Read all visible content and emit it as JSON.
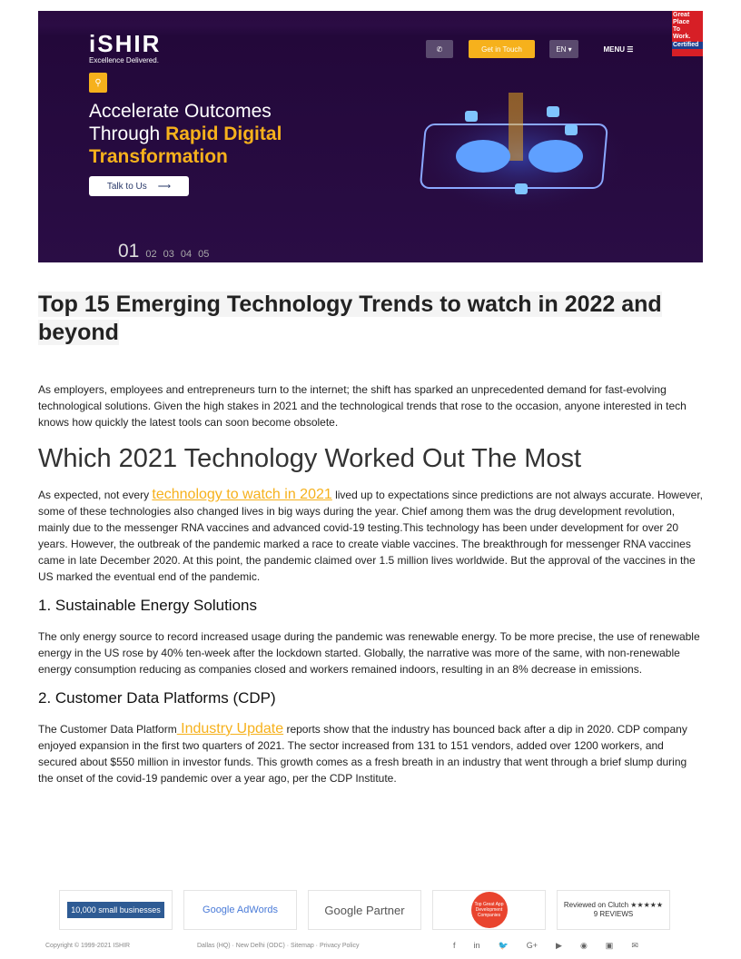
{
  "hero": {
    "logo": "iSHIR",
    "logo_tag": "Excellence Delivered.",
    "get_in_touch": "Get in Touch",
    "lang": "EN ▾",
    "menu": "MENU ☰",
    "gptw": [
      "Great",
      "Place",
      "To",
      "Work."
    ],
    "gptw_cert": "Certified",
    "headline_line1": "Accelerate Outcomes",
    "headline_line2_plain": "Through ",
    "headline_line2_bold": "Rapid Digital",
    "headline_line3": "Transformation",
    "talk_button": "Talk to Us",
    "slides": [
      "01",
      "02",
      "03",
      "04",
      "05"
    ],
    "colors": {
      "accent": "#f6b11c",
      "background": "#2a0d45"
    }
  },
  "article": {
    "title": "Top 15 Emerging Technology Trends to watch in 2022 and beyond",
    "intro": "As employers, employees and entrepreneurs turn to the internet; the shift has sparked an unprecedented demand for fast-evolving technological solutions. Given the high stakes in 2021 and the technological trends that rose to the occasion, anyone interested in tech knows how quickly the latest tools can soon become obsolete.",
    "h2": "Which 2021 Technology Worked Out The Most",
    "p1_before": "As expected, not every ",
    "p1_link": "technology to watch in 2021",
    "p1_after": " lived up to expectations since predictions are not always accurate. However, some of these technologies also changed lives in big ways during the year. Chief among them was the drug development revolution, mainly due to the messenger RNA vaccines and advanced covid-19 testing.This technology has been under development for over 20 years. However, the outbreak of the pandemic marked a race to create viable vaccines. The breakthrough for messenger RNA vaccines came in late December 2020. At this point, the pandemic claimed over 1.5 million lives worldwide. But the approval of the vaccines in the US marked the eventual end of the pandemic.",
    "s1": "1. Sustainable Energy Solutions",
    "s1_text": "The only energy source to record increased usage during the pandemic was renewable energy. To be more precise, the use of renewable energy in the US rose by 40% ten-week after the lockdown started. Globally, the narrative was more of the same, with non-renewable energy consumption reducing as companies closed and workers remained indoors, resulting in an 8% decrease in emissions.",
    "s2": "2. Customer Data Platforms (CDP)",
    "s2_before": "The Customer Data Platform",
    "s2_link": " Industry Update",
    "s2_after": " reports show that the industry has bounced back after a dip in 2020. CDP company enjoyed expansion in the first two quarters of 2021. The sector increased from 131 to 151 vendors, added over 1200 workers, and secured about $550 million in investor funds. This growth comes as a fresh breath in an industry that went through a brief slump during the onset of the covid-19 pandemic over a year ago, per the CDP Institute."
  },
  "badges": [
    "10,000 small businesses",
    "Google AdWords",
    "Google Partner",
    "Top Great App Development Companies",
    "Reviewed on Clutch ★★★★★ 9 REVIEWS"
  ],
  "footer": {
    "copyright": "Copyright © 1999-2021 ISHIR",
    "links": "Dallas (HQ)  ·  New Delhi (ODC)  ·  Sitemap  ·  Privacy Policy",
    "social": [
      "f",
      "in",
      "🐦",
      "G+",
      "▶",
      "◉",
      "▣",
      "✉"
    ]
  }
}
